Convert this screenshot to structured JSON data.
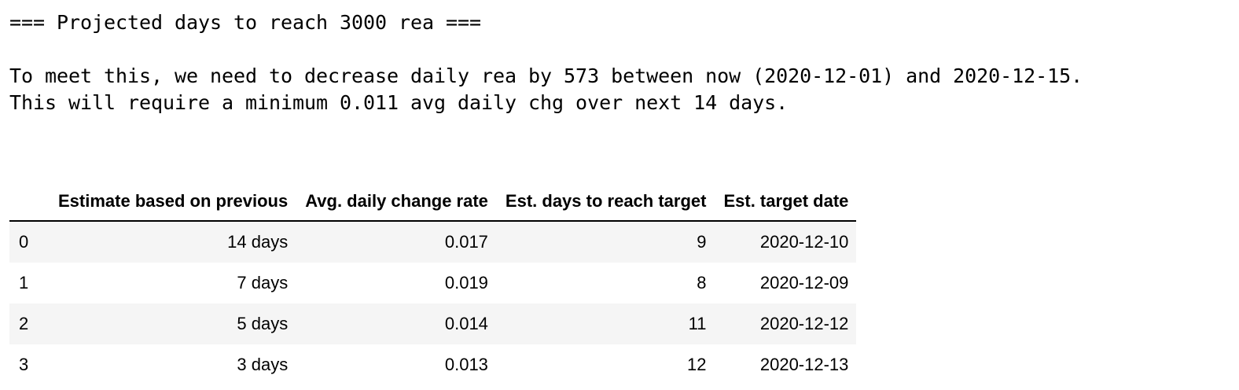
{
  "output": {
    "heading": "=== Projected days to reach 3000 rea ===",
    "blank": "",
    "line1": "To meet this, we need to decrease daily rea by 573 between now (2020-12-01) and 2020-12-15.",
    "line2": "This will require a minimum 0.011 avg daily chg over next 14 days."
  },
  "table": {
    "columns": [
      "",
      "Estimate based on previous",
      "Avg. daily change rate",
      "Est. days to reach target",
      "Est. target date"
    ],
    "rows": [
      [
        "0",
        "14 days",
        "0.017",
        "9",
        "2020-12-10"
      ],
      [
        "1",
        "7 days",
        "0.019",
        "8",
        "2020-12-09"
      ],
      [
        "2",
        "5 days",
        "0.014",
        "11",
        "2020-12-12"
      ],
      [
        "3",
        "3 days",
        "0.013",
        "12",
        "2020-12-13"
      ]
    ]
  }
}
